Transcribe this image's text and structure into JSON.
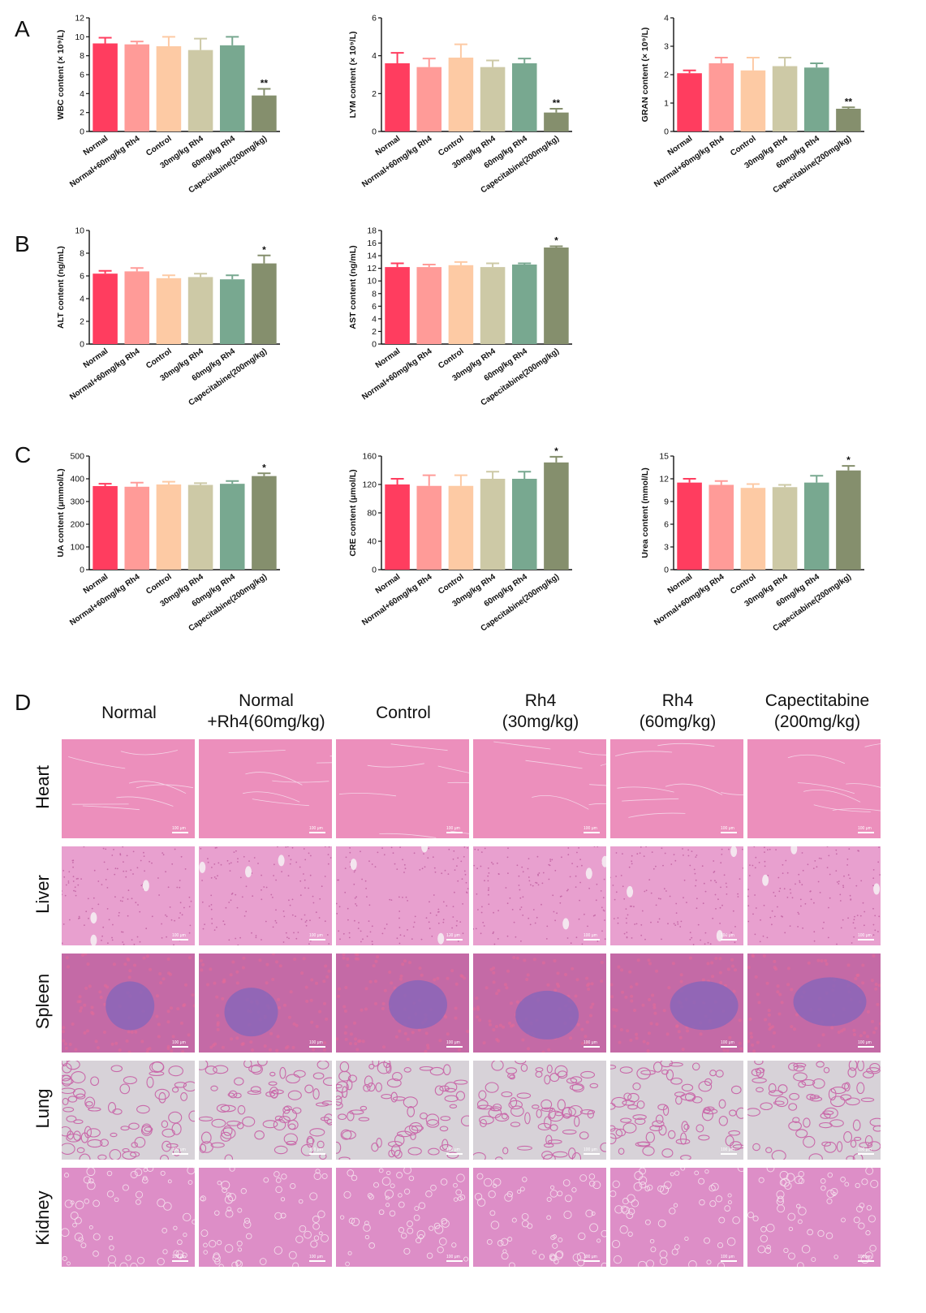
{
  "panels": {
    "A": "A",
    "B": "B",
    "C": "C",
    "D": "D"
  },
  "colors": [
    "#ff3d5f",
    "#ff9b98",
    "#fdcaa4",
    "#cdc9a6",
    "#78a890",
    "#858f6d"
  ],
  "groups": [
    "Normal",
    "Normal+60mg/kg Rh4",
    "Control",
    "30mg/kg Rh4",
    "60mg/kg Rh4",
    "Capecitabine(200mg/kg)"
  ],
  "chart_data": [
    {
      "id": "wbc",
      "type": "bar",
      "title": "",
      "xlabel": "",
      "ylabel": "WBC content (× 10⁹/L)",
      "categories": [
        "Normal",
        "Normal+60mg/kg Rh4",
        "Control",
        "30mg/kg Rh4",
        "60mg/kg Rh4",
        "Capecitabine(200mg/kg)"
      ],
      "values": [
        9.3,
        9.2,
        9.0,
        8.6,
        9.1,
        3.8
      ],
      "errors": [
        0.6,
        0.3,
        1.0,
        1.2,
        0.9,
        0.7
      ],
      "significance": [
        "",
        "",
        "",
        "",
        "",
        "**"
      ],
      "ylim": [
        0,
        12
      ],
      "yticks": [
        0,
        2,
        4,
        6,
        8,
        10,
        12
      ]
    },
    {
      "id": "lym",
      "type": "bar",
      "title": "",
      "xlabel": "",
      "ylabel": "LYM content (× 10⁹/L)",
      "categories": [
        "Normal",
        "Normal+60mg/kg Rh4",
        "Control",
        "30mg/kg Rh4",
        "60mg/kg Rh4",
        "Capecitabine(200mg/kg)"
      ],
      "values": [
        3.6,
        3.4,
        3.9,
        3.4,
        3.6,
        1.0
      ],
      "errors": [
        0.55,
        0.45,
        0.7,
        0.35,
        0.25,
        0.2
      ],
      "significance": [
        "",
        "",
        "",
        "",
        "",
        "**"
      ],
      "ylim": [
        0,
        6
      ],
      "yticks": [
        0,
        2,
        4,
        6
      ]
    },
    {
      "id": "gran",
      "type": "bar",
      "title": "",
      "xlabel": "",
      "ylabel": "GRAN content (× 10⁹/L)",
      "categories": [
        "Normal",
        "Normal+60mg/kg Rh4",
        "Control",
        "30mg/kg Rh4",
        "60mg/kg Rh4",
        "Capecitabine(200mg/kg)"
      ],
      "values": [
        2.05,
        2.4,
        2.15,
        2.3,
        2.25,
        0.8
      ],
      "errors": [
        0.1,
        0.2,
        0.45,
        0.3,
        0.15,
        0.05
      ],
      "significance": [
        "",
        "",
        "",
        "",
        "",
        "**"
      ],
      "ylim": [
        0,
        4
      ],
      "yticks": [
        0,
        1,
        2,
        3,
        4
      ]
    },
    {
      "id": "alt",
      "type": "bar",
      "title": "",
      "xlabel": "",
      "ylabel": "ALT content (ng/mL)",
      "categories": [
        "Normal",
        "Normal+60mg/kg Rh4",
        "Control",
        "30mg/kg Rh4",
        "60mg/kg Rh4",
        "Capecitabine(200mg/kg)"
      ],
      "values": [
        6.2,
        6.4,
        5.8,
        5.9,
        5.7,
        7.1
      ],
      "errors": [
        0.25,
        0.3,
        0.25,
        0.3,
        0.35,
        0.7
      ],
      "significance": [
        "",
        "",
        "",
        "",
        "",
        "*"
      ],
      "ylim": [
        0,
        10
      ],
      "yticks": [
        0,
        2,
        4,
        6,
        8,
        10
      ]
    },
    {
      "id": "ast",
      "type": "bar",
      "title": "",
      "xlabel": "",
      "ylabel": "AST content (ng/mL)",
      "categories": [
        "Normal",
        "Normal+60mg/kg Rh4",
        "Control",
        "30mg/kg Rh4",
        "60mg/kg Rh4",
        "Capecitabine(200mg/kg)"
      ],
      "values": [
        12.2,
        12.2,
        12.5,
        12.2,
        12.6,
        15.3
      ],
      "errors": [
        0.6,
        0.4,
        0.5,
        0.6,
        0.2,
        0.2
      ],
      "significance": [
        "",
        "",
        "",
        "",
        "",
        "*"
      ],
      "ylim": [
        0,
        18
      ],
      "yticks": [
        0,
        2,
        4,
        6,
        8,
        10,
        12,
        14,
        16,
        18
      ]
    },
    {
      "id": "ua",
      "type": "bar",
      "title": "",
      "xlabel": "",
      "ylabel": "UA content (μmmol/L)",
      "categories": [
        "Normal",
        "Normal+60mg/kg Rh4",
        "Control",
        "30mg/kg Rh4",
        "60mg/kg Rh4",
        "Capecitabine(200mg/kg)"
      ],
      "values": [
        368,
        365,
        375,
        373,
        378,
        412
      ],
      "errors": [
        10,
        18,
        12,
        8,
        12,
        12
      ],
      "significance": [
        "",
        "",
        "",
        "",
        "",
        "*"
      ],
      "ylim": [
        0,
        500
      ],
      "yticks": [
        0,
        100,
        200,
        300,
        400,
        500
      ]
    },
    {
      "id": "cre",
      "type": "bar",
      "title": "",
      "xlabel": "",
      "ylabel": "CRE content (μmol/L)",
      "categories": [
        "Normal",
        "Normal+60mg/kg Rh4",
        "Control",
        "30mg/kg Rh4",
        "60mg/kg Rh4",
        "Capecitabine(200mg/kg)"
      ],
      "values": [
        120,
        118,
        118,
        128,
        128,
        151
      ],
      "errors": [
        8,
        15,
        15,
        10,
        10,
        8
      ],
      "significance": [
        "",
        "",
        "",
        "",
        "",
        "*"
      ],
      "ylim": [
        0,
        160
      ],
      "yticks": [
        0,
        40,
        80,
        120,
        160
      ]
    },
    {
      "id": "urea",
      "type": "bar",
      "title": "",
      "xlabel": "",
      "ylabel": "Urea content (mmol/L)",
      "categories": [
        "Normal",
        "Normal+60mg/kg Rh4",
        "Control",
        "30mg/kg Rh4",
        "60mg/kg Rh4",
        "Capecitabine(200mg/kg)"
      ],
      "values": [
        11.5,
        11.2,
        10.8,
        10.9,
        11.5,
        13.1
      ],
      "errors": [
        0.5,
        0.5,
        0.5,
        0.3,
        0.9,
        0.6
      ],
      "significance": [
        "",
        "",
        "",
        "",
        "",
        "*"
      ],
      "ylim": [
        0,
        15
      ],
      "yticks": [
        0,
        3,
        6,
        9,
        12,
        15
      ]
    }
  ],
  "histology": {
    "columns": [
      {
        "line1": "Normal",
        "line2": ""
      },
      {
        "line1": "Normal",
        "line2": "+Rh4(60mg/kg)"
      },
      {
        "line1": "Control",
        "line2": ""
      },
      {
        "line1": "Rh4",
        "line2": "(30mg/kg)"
      },
      {
        "line1": "Rh4",
        "line2": "(60mg/kg)"
      },
      {
        "line1": "Capectitabine",
        "line2": "(200mg/kg)"
      }
    ],
    "rows": [
      {
        "label": "Heart",
        "type": "heart"
      },
      {
        "label": "Liver",
        "type": "liver"
      },
      {
        "label": "Spleen",
        "type": "spleen"
      },
      {
        "label": "Lung",
        "type": "lung"
      },
      {
        "label": "Kidney",
        "type": "kidney"
      }
    ],
    "scale_label": "100 μm"
  }
}
